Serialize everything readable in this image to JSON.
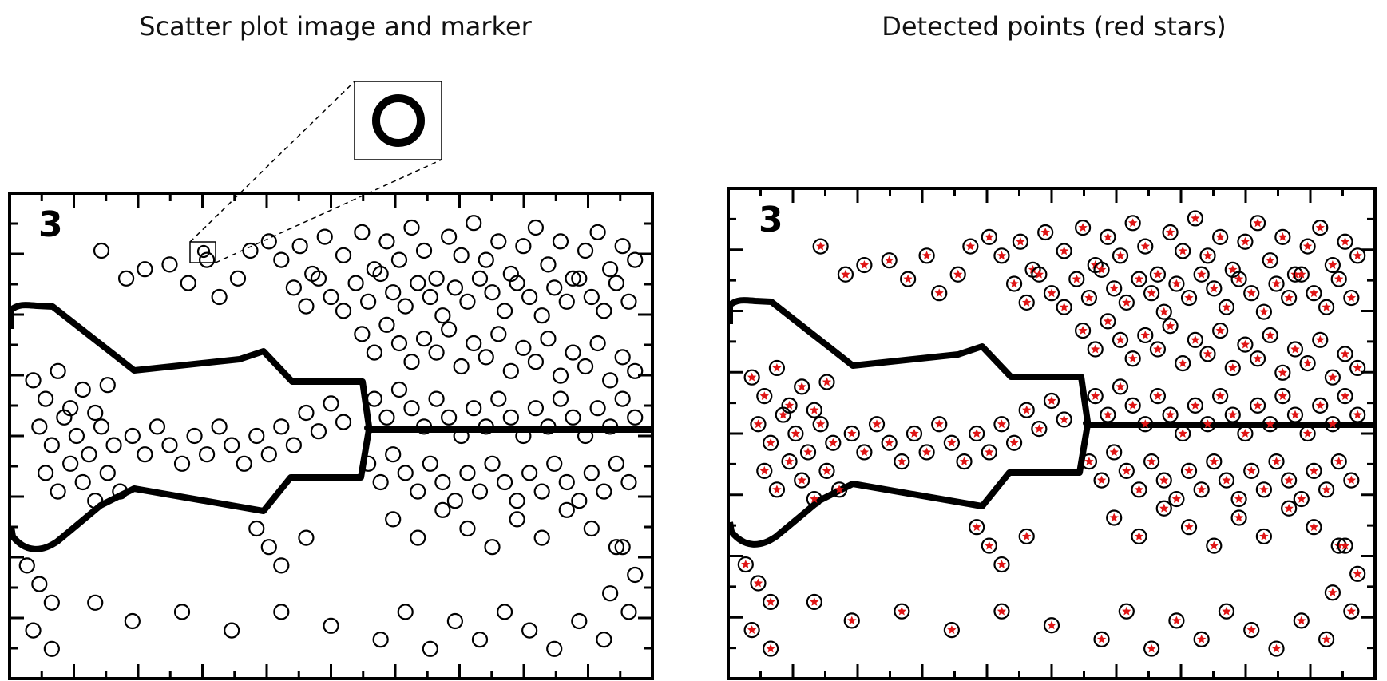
{
  "panels": {
    "left_title": "Scatter plot image and marker",
    "right_title": "Detected points (red stars)"
  },
  "chart_data": [
    {
      "type": "scatter",
      "title": "Scatter plot image and marker",
      "panel_label": "3",
      "marker": "open-circle",
      "inset": "enlarged marker",
      "xlim": [
        0,
        100
      ],
      "ylim": [
        0,
        100
      ],
      "points": [
        [
          13,
          90
        ],
        [
          17,
          84
        ],
        [
          20,
          86
        ],
        [
          24,
          87
        ],
        [
          27,
          83
        ],
        [
          30,
          88
        ],
        [
          32,
          80
        ],
        [
          35,
          84
        ],
        [
          37,
          90
        ],
        [
          40,
          92
        ],
        [
          42,
          88
        ],
        [
          45,
          91
        ],
        [
          47,
          85
        ],
        [
          49,
          93
        ],
        [
          52,
          89
        ],
        [
          55,
          94
        ],
        [
          57,
          86
        ],
        [
          59,
          92
        ],
        [
          61,
          88
        ],
        [
          63,
          95
        ],
        [
          65,
          90
        ],
        [
          67,
          84
        ],
        [
          69,
          93
        ],
        [
          71,
          89
        ],
        [
          73,
          96
        ],
        [
          75,
          88
        ],
        [
          77,
          92
        ],
        [
          79,
          85
        ],
        [
          81,
          91
        ],
        [
          83,
          95
        ],
        [
          85,
          87
        ],
        [
          87,
          92
        ],
        [
          89,
          84
        ],
        [
          91,
          90
        ],
        [
          93,
          94
        ],
        [
          95,
          86
        ],
        [
          97,
          91
        ],
        [
          99,
          88
        ],
        [
          44,
          82
        ],
        [
          46,
          78
        ],
        [
          48,
          84
        ],
        [
          50,
          80
        ],
        [
          52,
          77
        ],
        [
          54,
          83
        ],
        [
          56,
          79
        ],
        [
          58,
          85
        ],
        [
          60,
          81
        ],
        [
          62,
          78
        ],
        [
          64,
          83
        ],
        [
          66,
          80
        ],
        [
          68,
          76
        ],
        [
          70,
          82
        ],
        [
          72,
          79
        ],
        [
          74,
          84
        ],
        [
          76,
          81
        ],
        [
          78,
          77
        ],
        [
          80,
          83
        ],
        [
          82,
          80
        ],
        [
          84,
          76
        ],
        [
          86,
          82
        ],
        [
          88,
          79
        ],
        [
          90,
          84
        ],
        [
          92,
          80
        ],
        [
          94,
          77
        ],
        [
          96,
          83
        ],
        [
          98,
          79
        ],
        [
          55,
          72
        ],
        [
          57,
          68
        ],
        [
          59,
          74
        ],
        [
          61,
          70
        ],
        [
          63,
          66
        ],
        [
          65,
          71
        ],
        [
          67,
          68
        ],
        [
          69,
          73
        ],
        [
          71,
          65
        ],
        [
          73,
          70
        ],
        [
          75,
          67
        ],
        [
          77,
          72
        ],
        [
          79,
          64
        ],
        [
          81,
          69
        ],
        [
          83,
          66
        ],
        [
          85,
          71
        ],
        [
          87,
          63
        ],
        [
          89,
          68
        ],
        [
          91,
          65
        ],
        [
          93,
          70
        ],
        [
          95,
          62
        ],
        [
          97,
          67
        ],
        [
          99,
          64
        ],
        [
          2,
          62
        ],
        [
          4,
          58
        ],
        [
          6,
          64
        ],
        [
          8,
          56
        ],
        [
          10,
          60
        ],
        [
          12,
          55
        ],
        [
          14,
          61
        ],
        [
          3,
          52
        ],
        [
          5,
          48
        ],
        [
          7,
          54
        ],
        [
          9,
          50
        ],
        [
          11,
          46
        ],
        [
          13,
          52
        ],
        [
          15,
          48
        ],
        [
          4,
          42
        ],
        [
          6,
          38
        ],
        [
          8,
          44
        ],
        [
          10,
          40
        ],
        [
          12,
          36
        ],
        [
          14,
          42
        ],
        [
          16,
          38
        ],
        [
          18,
          50
        ],
        [
          20,
          46
        ],
        [
          22,
          52
        ],
        [
          24,
          48
        ],
        [
          26,
          44
        ],
        [
          28,
          50
        ],
        [
          30,
          46
        ],
        [
          32,
          52
        ],
        [
          34,
          48
        ],
        [
          36,
          44
        ],
        [
          38,
          50
        ],
        [
          40,
          46
        ],
        [
          42,
          52
        ],
        [
          44,
          48
        ],
        [
          46,
          55
        ],
        [
          48,
          51
        ],
        [
          50,
          57
        ],
        [
          52,
          53
        ],
        [
          57,
          58
        ],
        [
          59,
          54
        ],
        [
          61,
          60
        ],
        [
          63,
          56
        ],
        [
          65,
          52
        ],
        [
          67,
          58
        ],
        [
          69,
          54
        ],
        [
          71,
          50
        ],
        [
          73,
          56
        ],
        [
          75,
          52
        ],
        [
          77,
          58
        ],
        [
          79,
          54
        ],
        [
          81,
          50
        ],
        [
          83,
          56
        ],
        [
          85,
          52
        ],
        [
          87,
          58
        ],
        [
          89,
          54
        ],
        [
          91,
          50
        ],
        [
          93,
          56
        ],
        [
          95,
          52
        ],
        [
          97,
          58
        ],
        [
          99,
          54
        ],
        [
          56,
          44
        ],
        [
          58,
          40
        ],
        [
          60,
          46
        ],
        [
          62,
          42
        ],
        [
          64,
          38
        ],
        [
          66,
          44
        ],
        [
          68,
          40
        ],
        [
          70,
          36
        ],
        [
          72,
          42
        ],
        [
          74,
          38
        ],
        [
          76,
          44
        ],
        [
          78,
          40
        ],
        [
          80,
          36
        ],
        [
          82,
          42
        ],
        [
          84,
          38
        ],
        [
          86,
          44
        ],
        [
          88,
          40
        ],
        [
          90,
          36
        ],
        [
          92,
          42
        ],
        [
          94,
          38
        ],
        [
          96,
          44
        ],
        [
          98,
          40
        ],
        [
          38,
          30
        ],
        [
          40,
          26
        ],
        [
          42,
          22
        ],
        [
          46,
          28
        ],
        [
          60,
          32
        ],
        [
          64,
          28
        ],
        [
          68,
          34
        ],
        [
          72,
          30
        ],
        [
          76,
          26
        ],
        [
          80,
          32
        ],
        [
          84,
          28
        ],
        [
          88,
          34
        ],
        [
          92,
          30
        ],
        [
          96,
          26
        ],
        [
          12,
          14
        ],
        [
          18,
          10
        ],
        [
          26,
          12
        ],
        [
          34,
          8
        ],
        [
          42,
          12
        ],
        [
          50,
          9
        ],
        [
          58,
          6
        ],
        [
          62,
          12
        ],
        [
          66,
          4
        ],
        [
          70,
          10
        ],
        [
          74,
          6
        ],
        [
          78,
          12
        ],
        [
          82,
          8
        ],
        [
          86,
          4
        ],
        [
          90,
          10
        ],
        [
          94,
          6
        ],
        [
          98,
          12
        ],
        [
          1,
          22
        ],
        [
          3,
          18
        ],
        [
          5,
          14
        ],
        [
          97,
          26
        ],
        [
          99,
          20
        ],
        [
          95,
          16
        ],
        [
          2,
          8
        ],
        [
          5,
          4
        ]
      ]
    },
    {
      "type": "scatter",
      "title": "Detected points (red stars)",
      "panel_label": "3",
      "marker": "open-circle",
      "detected_marker": "red-star",
      "star_color": "#e01515",
      "xlim": [
        0,
        100
      ],
      "ylim": [
        0,
        100
      ]
    }
  ]
}
